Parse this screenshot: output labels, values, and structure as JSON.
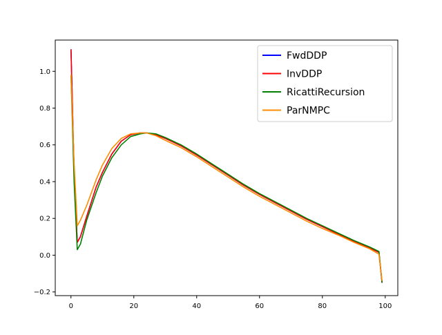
{
  "chart_data": {
    "type": "line",
    "title": "",
    "xlabel": "",
    "ylabel": "",
    "xlim": [
      -5,
      104
    ],
    "ylim": [
      -0.22,
      1.17
    ],
    "xticks": [
      0,
      20,
      40,
      60,
      80,
      100
    ],
    "yticks": [
      -0.2,
      0.0,
      0.2,
      0.4,
      0.6,
      0.8,
      1.0
    ],
    "xtick_labels": [
      "0",
      "20",
      "40",
      "60",
      "80",
      "100"
    ],
    "ytick_labels": [
      "−0.2",
      "0.0",
      "0.2",
      "0.4",
      "0.6",
      "0.8",
      "1.0"
    ],
    "grid": false,
    "legend_position": "top-right",
    "series": [
      {
        "name": "FwdDDP",
        "color": "#0000ff",
        "x": [
          0,
          1,
          2,
          3,
          5,
          8,
          10,
          13,
          16,
          19,
          22,
          24,
          27,
          30,
          35,
          40,
          45,
          50,
          55,
          60,
          65,
          70,
          75,
          80,
          85,
          90,
          95,
          98,
          99
        ],
        "y": [
          1.12,
          0.45,
          0.07,
          0.1,
          0.21,
          0.37,
          0.45,
          0.55,
          0.62,
          0.655,
          0.665,
          0.665,
          0.655,
          0.635,
          0.595,
          0.545,
          0.49,
          0.435,
          0.38,
          0.33,
          0.285,
          0.24,
          0.195,
          0.155,
          0.115,
          0.075,
          0.04,
          0.015,
          -0.15
        ]
      },
      {
        "name": "InvDDP",
        "color": "#ff0000",
        "x": [
          0,
          1,
          2,
          3,
          5,
          8,
          10,
          13,
          16,
          19,
          22,
          24,
          27,
          30,
          35,
          40,
          45,
          50,
          55,
          60,
          65,
          70,
          75,
          80,
          85,
          90,
          95,
          98,
          99
        ],
        "y": [
          1.12,
          0.45,
          0.07,
          0.1,
          0.21,
          0.37,
          0.45,
          0.55,
          0.62,
          0.655,
          0.665,
          0.665,
          0.655,
          0.635,
          0.595,
          0.545,
          0.49,
          0.435,
          0.38,
          0.33,
          0.285,
          0.24,
          0.195,
          0.155,
          0.115,
          0.075,
          0.04,
          0.015,
          -0.15
        ]
      },
      {
        "name": "RicattiRecursion",
        "color": "#008000",
        "x": [
          0,
          1,
          2,
          3,
          5,
          8,
          10,
          13,
          16,
          19,
          22,
          24,
          27,
          30,
          35,
          40,
          45,
          50,
          55,
          60,
          65,
          70,
          75,
          80,
          85,
          90,
          95,
          98,
          99
        ],
        "y": [
          0.98,
          0.4,
          0.03,
          0.06,
          0.19,
          0.34,
          0.43,
          0.53,
          0.6,
          0.645,
          0.66,
          0.665,
          0.66,
          0.64,
          0.6,
          0.55,
          0.495,
          0.44,
          0.385,
          0.335,
          0.29,
          0.245,
          0.2,
          0.16,
          0.12,
          0.08,
          0.045,
          0.02,
          -0.15
        ]
      },
      {
        "name": "ParNMPC",
        "color": "#ff8c00",
        "x": [
          0,
          1,
          2,
          3,
          5,
          8,
          10,
          13,
          16,
          19,
          22,
          24,
          27,
          30,
          35,
          40,
          45,
          50,
          55,
          60,
          65,
          70,
          75,
          80,
          85,
          90,
          95,
          98,
          99
        ],
        "y": [
          0.98,
          0.5,
          0.16,
          0.19,
          0.27,
          0.41,
          0.49,
          0.58,
          0.635,
          0.66,
          0.665,
          0.665,
          0.65,
          0.625,
          0.585,
          0.535,
          0.48,
          0.425,
          0.37,
          0.32,
          0.275,
          0.23,
          0.185,
          0.145,
          0.11,
          0.07,
          0.035,
          0.005,
          -0.14
        ]
      }
    ]
  }
}
